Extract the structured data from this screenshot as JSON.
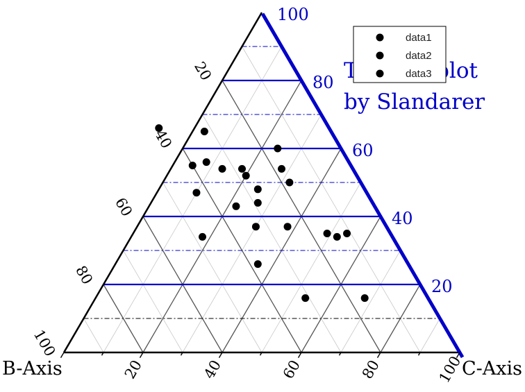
{
  "chart_data": {
    "type": "scatter",
    "subtype": "ternary",
    "title": "Ternary plot",
    "subtitle": "by Slandarer",
    "axes": {
      "a": {
        "label": "",
        "ticks": [
          20,
          40,
          60,
          80,
          100
        ],
        "color": "#0000c8"
      },
      "b": {
        "label": "B-Axis",
        "ticks": [
          20,
          40,
          60,
          80,
          100
        ],
        "color": "#000000"
      },
      "c": {
        "label": "C-Axis",
        "ticks": [
          20,
          40,
          60,
          80,
          100
        ],
        "color": "#000000"
      }
    },
    "grid": true,
    "legend": {
      "position": "top-right",
      "entries": [
        "data1",
        "data2",
        "data3"
      ]
    },
    "series": [
      {
        "name": "data1",
        "color": "#000000",
        "points": [
          [
            60,
            16,
            24
          ],
          [
            54,
            18,
            28
          ],
          [
            43,
            35,
            22
          ],
          [
            37,
            33,
            30
          ],
          [
            56,
            36,
            8
          ],
          [
            52,
            28,
            20
          ],
          [
            54,
            33,
            13
          ],
          [
            48,
            27,
            25
          ]
        ]
      },
      {
        "name": "data2",
        "color": "#000000",
        "points": [
          [
            37,
            25,
            38
          ],
          [
            35,
            11,
            54
          ],
          [
            16,
            16,
            68
          ],
          [
            47,
            43,
            10
          ],
          [
            34,
            48,
            18
          ],
          [
            44,
            29,
            27
          ],
          [
            65,
            32,
            3
          ],
          [
            66,
            43,
            -9
          ]
        ]
      },
      {
        "name": "data3",
        "color": "#000000",
        "points": [
          [
            54,
            28,
            18
          ],
          [
            26,
            38,
            36
          ],
          [
            16,
            31,
            53
          ],
          [
            55,
            40,
            5
          ],
          [
            50,
            18,
            32
          ],
          [
            34,
            14,
            52
          ],
          [
            35,
            16,
            49
          ]
        ]
      }
    ]
  }
}
